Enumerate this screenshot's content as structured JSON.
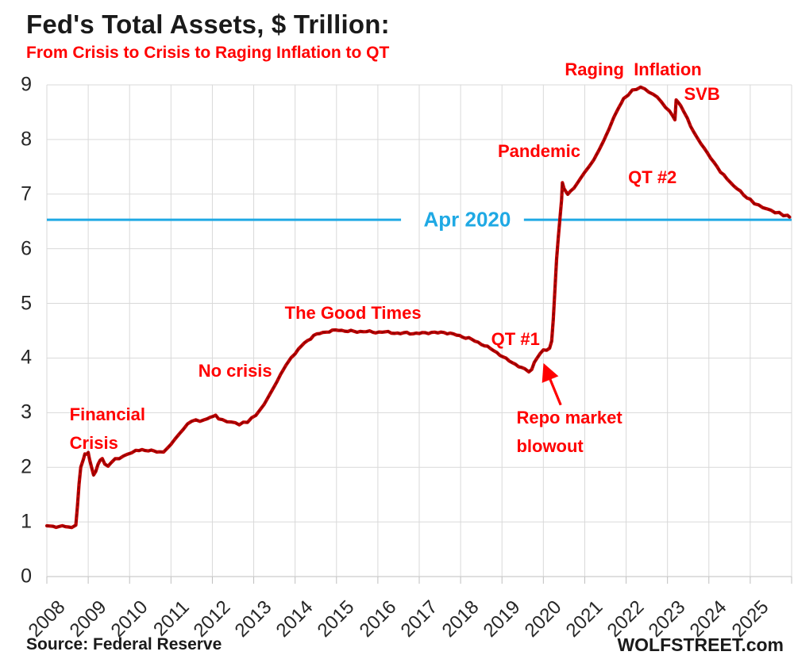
{
  "title": "Fed's Total Assets, $ Trillion:",
  "subtitle": "From Crisis to Crisis to Raging Inflation to QT",
  "source_note": "Source: Federal Reserve",
  "branding": "WOLFSTREET.com",
  "colors": {
    "series_line": "#C00000",
    "series_dot_overlay": "#7E0000",
    "annotation_red": "#FF0000",
    "reference_cyan": "#1FA9E4",
    "grid": "#D9D9D9",
    "axis_line": "#BFBFBF",
    "axis_text": "#262626",
    "title_text": "#1A1A1A"
  },
  "chart_data": {
    "type": "line",
    "title": "Fed's Total Assets, $ Trillion:",
    "subtitle": "From Crisis to Crisis to Raging Inflation to QT",
    "xlabel": "",
    "ylabel": "",
    "xlim": [
      2008,
      2026
    ],
    "ylim": [
      0,
      9
    ],
    "grid": true,
    "y_ticks": [
      0,
      1,
      2,
      3,
      4,
      5,
      6,
      7,
      8,
      9
    ],
    "x_ticks": [
      2008,
      2009,
      2010,
      2011,
      2012,
      2013,
      2014,
      2015,
      2016,
      2017,
      2018,
      2019,
      2020,
      2021,
      2022,
      2023,
      2024,
      2025
    ],
    "series": [
      {
        "name": "Fed total assets ($ trillion)",
        "color": "#C00000",
        "points": [
          [
            2008.0,
            0.93
          ],
          [
            2008.15,
            0.92
          ],
          [
            2008.3,
            0.91
          ],
          [
            2008.45,
            0.92
          ],
          [
            2008.6,
            0.9
          ],
          [
            2008.7,
            0.94
          ],
          [
            2008.74,
            1.3
          ],
          [
            2008.78,
            1.7
          ],
          [
            2008.82,
            2.0
          ],
          [
            2008.88,
            2.14
          ],
          [
            2008.92,
            2.26
          ],
          [
            2008.97,
            2.24
          ],
          [
            2009.0,
            2.27
          ],
          [
            2009.03,
            2.15
          ],
          [
            2009.08,
            2.0
          ],
          [
            2009.13,
            1.86
          ],
          [
            2009.18,
            1.92
          ],
          [
            2009.24,
            2.06
          ],
          [
            2009.29,
            2.14
          ],
          [
            2009.34,
            2.16
          ],
          [
            2009.4,
            2.05
          ],
          [
            2009.48,
            2.02
          ],
          [
            2009.55,
            2.1
          ],
          [
            2009.65,
            2.14
          ],
          [
            2009.75,
            2.17
          ],
          [
            2009.85,
            2.2
          ],
          [
            2009.95,
            2.24
          ],
          [
            2010.05,
            2.27
          ],
          [
            2010.15,
            2.3
          ],
          [
            2010.3,
            2.32
          ],
          [
            2010.45,
            2.31
          ],
          [
            2010.6,
            2.29
          ],
          [
            2010.72,
            2.27
          ],
          [
            2010.82,
            2.29
          ],
          [
            2010.92,
            2.35
          ],
          [
            2011.0,
            2.42
          ],
          [
            2011.1,
            2.52
          ],
          [
            2011.2,
            2.61
          ],
          [
            2011.3,
            2.7
          ],
          [
            2011.4,
            2.79
          ],
          [
            2011.5,
            2.85
          ],
          [
            2011.6,
            2.86
          ],
          [
            2011.7,
            2.85
          ],
          [
            2011.8,
            2.86
          ],
          [
            2011.88,
            2.88
          ],
          [
            2011.95,
            2.93
          ],
          [
            2012.02,
            2.94
          ],
          [
            2012.08,
            2.95
          ],
          [
            2012.15,
            2.9
          ],
          [
            2012.25,
            2.86
          ],
          [
            2012.35,
            2.84
          ],
          [
            2012.45,
            2.83
          ],
          [
            2012.55,
            2.81
          ],
          [
            2012.65,
            2.79
          ],
          [
            2012.75,
            2.81
          ],
          [
            2012.85,
            2.84
          ],
          [
            2012.95,
            2.89
          ],
          [
            2013.05,
            2.95
          ],
          [
            2013.15,
            3.05
          ],
          [
            2013.25,
            3.15
          ],
          [
            2013.4,
            3.35
          ],
          [
            2013.55,
            3.55
          ],
          [
            2013.65,
            3.7
          ],
          [
            2013.78,
            3.87
          ],
          [
            2013.9,
            4.0
          ],
          [
            2014.0,
            4.08
          ],
          [
            2014.15,
            4.22
          ],
          [
            2014.3,
            4.32
          ],
          [
            2014.45,
            4.41
          ],
          [
            2014.6,
            4.45
          ],
          [
            2014.75,
            4.48
          ],
          [
            2014.9,
            4.5
          ],
          [
            2015.05,
            4.51
          ],
          [
            2015.2,
            4.5
          ],
          [
            2015.35,
            4.49
          ],
          [
            2015.5,
            4.48
          ],
          [
            2015.65,
            4.49
          ],
          [
            2015.8,
            4.48
          ],
          [
            2015.95,
            4.47
          ],
          [
            2016.1,
            4.48
          ],
          [
            2016.25,
            4.47
          ],
          [
            2016.4,
            4.46
          ],
          [
            2016.55,
            4.45
          ],
          [
            2016.7,
            4.46
          ],
          [
            2016.85,
            4.45
          ],
          [
            2017.0,
            4.45
          ],
          [
            2017.15,
            4.46
          ],
          [
            2017.3,
            4.47
          ],
          [
            2017.45,
            4.46
          ],
          [
            2017.6,
            4.47
          ],
          [
            2017.75,
            4.45
          ],
          [
            2017.9,
            4.42
          ],
          [
            2018.05,
            4.39
          ],
          [
            2018.2,
            4.36
          ],
          [
            2018.35,
            4.31
          ],
          [
            2018.5,
            4.26
          ],
          [
            2018.65,
            4.2
          ],
          [
            2018.8,
            4.14
          ],
          [
            2018.95,
            4.06
          ],
          [
            2019.1,
            3.98
          ],
          [
            2019.25,
            3.92
          ],
          [
            2019.4,
            3.85
          ],
          [
            2019.55,
            3.79
          ],
          [
            2019.65,
            3.76
          ],
          [
            2019.72,
            3.79
          ],
          [
            2019.78,
            3.92
          ],
          [
            2019.85,
            4.0
          ],
          [
            2019.92,
            4.07
          ],
          [
            2020.0,
            4.14
          ],
          [
            2020.08,
            4.16
          ],
          [
            2020.15,
            4.18
          ],
          [
            2020.2,
            4.31
          ],
          [
            2020.24,
            4.7
          ],
          [
            2020.28,
            5.25
          ],
          [
            2020.32,
            5.81
          ],
          [
            2020.36,
            6.2
          ],
          [
            2020.4,
            6.55
          ],
          [
            2020.44,
            6.9
          ],
          [
            2020.46,
            7.21
          ],
          [
            2020.5,
            7.1
          ],
          [
            2020.55,
            7.04
          ],
          [
            2020.59,
            7.0
          ],
          [
            2020.66,
            7.06
          ],
          [
            2020.74,
            7.11
          ],
          [
            2020.82,
            7.2
          ],
          [
            2020.9,
            7.29
          ],
          [
            2021.0,
            7.4
          ],
          [
            2021.1,
            7.5
          ],
          [
            2021.22,
            7.63
          ],
          [
            2021.34,
            7.8
          ],
          [
            2021.46,
            7.98
          ],
          [
            2021.58,
            8.18
          ],
          [
            2021.7,
            8.4
          ],
          [
            2021.82,
            8.58
          ],
          [
            2021.94,
            8.74
          ],
          [
            2022.05,
            8.83
          ],
          [
            2022.15,
            8.89
          ],
          [
            2022.25,
            8.93
          ],
          [
            2022.35,
            8.95
          ],
          [
            2022.45,
            8.93
          ],
          [
            2022.55,
            8.87
          ],
          [
            2022.65,
            8.82
          ],
          [
            2022.75,
            8.78
          ],
          [
            2022.85,
            8.68
          ],
          [
            2022.95,
            8.6
          ],
          [
            2023.05,
            8.52
          ],
          [
            2023.12,
            8.44
          ],
          [
            2023.18,
            8.36
          ],
          [
            2023.21,
            8.72
          ],
          [
            2023.26,
            8.68
          ],
          [
            2023.32,
            8.62
          ],
          [
            2023.4,
            8.5
          ],
          [
            2023.48,
            8.39
          ],
          [
            2023.56,
            8.24
          ],
          [
            2023.64,
            8.13
          ],
          [
            2023.72,
            8.03
          ],
          [
            2023.8,
            7.93
          ],
          [
            2023.88,
            7.85
          ],
          [
            2023.96,
            7.76
          ],
          [
            2024.04,
            7.66
          ],
          [
            2024.12,
            7.57
          ],
          [
            2024.2,
            7.5
          ],
          [
            2024.28,
            7.41
          ],
          [
            2024.36,
            7.34
          ],
          [
            2024.44,
            7.28
          ],
          [
            2024.52,
            7.22
          ],
          [
            2024.6,
            7.15
          ],
          [
            2024.68,
            7.1
          ],
          [
            2024.76,
            7.05
          ],
          [
            2024.84,
            6.99
          ],
          [
            2024.92,
            6.94
          ],
          [
            2025.0,
            6.89
          ],
          [
            2025.1,
            6.84
          ],
          [
            2025.2,
            6.79
          ],
          [
            2025.3,
            6.76
          ],
          [
            2025.4,
            6.73
          ],
          [
            2025.5,
            6.7
          ],
          [
            2025.6,
            6.67
          ],
          [
            2025.7,
            6.65
          ],
          [
            2025.8,
            6.62
          ],
          [
            2025.9,
            6.6
          ],
          [
            2025.95,
            6.58
          ]
        ]
      }
    ],
    "reference_line": {
      "label": "Apr 2020",
      "value": 6.53,
      "color": "#1FA9E4",
      "label_center_year": 2018.16,
      "label_gap_years": [
        2016.56,
        2019.53
      ]
    },
    "annotations": [
      {
        "id": "financial-crisis",
        "text": "Financial\nCrisis",
        "year": 2008.55,
        "value": 3.22
      },
      {
        "id": "no-crisis",
        "text": "No crisis",
        "year": 2011.66,
        "value": 4.02
      },
      {
        "id": "good-times",
        "text": "The Good Times",
        "year": 2013.75,
        "value": 5.08
      },
      {
        "id": "qt-1",
        "text": "QT #1",
        "year": 2018.74,
        "value": 4.6
      },
      {
        "id": "repo-blowout",
        "text": "Repo market\nblowout",
        "year": 2019.35,
        "value": 3.16
      },
      {
        "id": "pandemic",
        "text": "Pandemic",
        "year": 2018.9,
        "value": 8.04
      },
      {
        "id": "raging-inflation",
        "text": "Raging  Inflation",
        "year": 2020.52,
        "value": 9.53
      },
      {
        "id": "qt-2",
        "text": "QT #2",
        "year": 2022.05,
        "value": 7.56
      },
      {
        "id": "svb",
        "text": "SVB",
        "year": 2023.4,
        "value": 9.09
      }
    ],
    "arrow": {
      "from_year": 2020.42,
      "from_value": 3.14,
      "to_year": 2020.05,
      "to_value": 3.82
    }
  }
}
